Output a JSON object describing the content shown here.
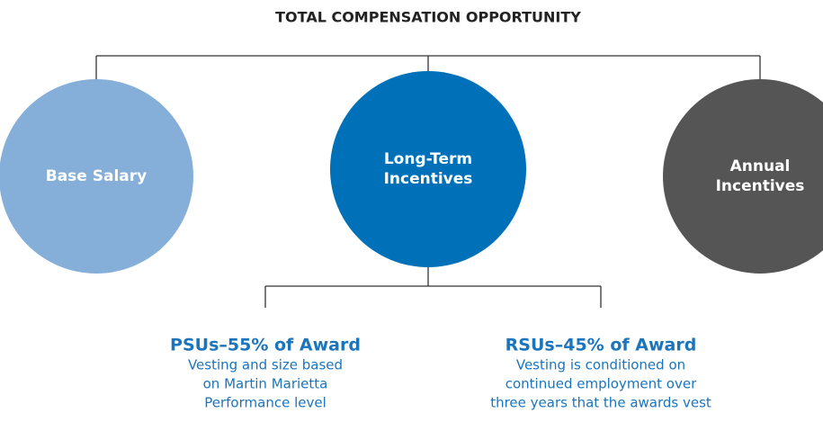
{
  "title": "TOTAL COMPENSATION OPPORTUNITY",
  "nodes": [
    {
      "label": [
        "Base Salary"
      ]
    },
    {
      "label": [
        "Long-Term",
        "Incentives"
      ]
    },
    {
      "label": [
        "Annual",
        "Incentives"
      ]
    }
  ],
  "sub_items": [
    {
      "title": "PSUs–55% of Award",
      "lines": [
        "Vesting and size based",
        "on Martin Marietta",
        "Performance level"
      ]
    },
    {
      "title": "RSUs–45% of Award",
      "lines": [
        "Vesting is conditioned on",
        "continued employment over",
        "three years that the awards vest"
      ]
    }
  ]
}
